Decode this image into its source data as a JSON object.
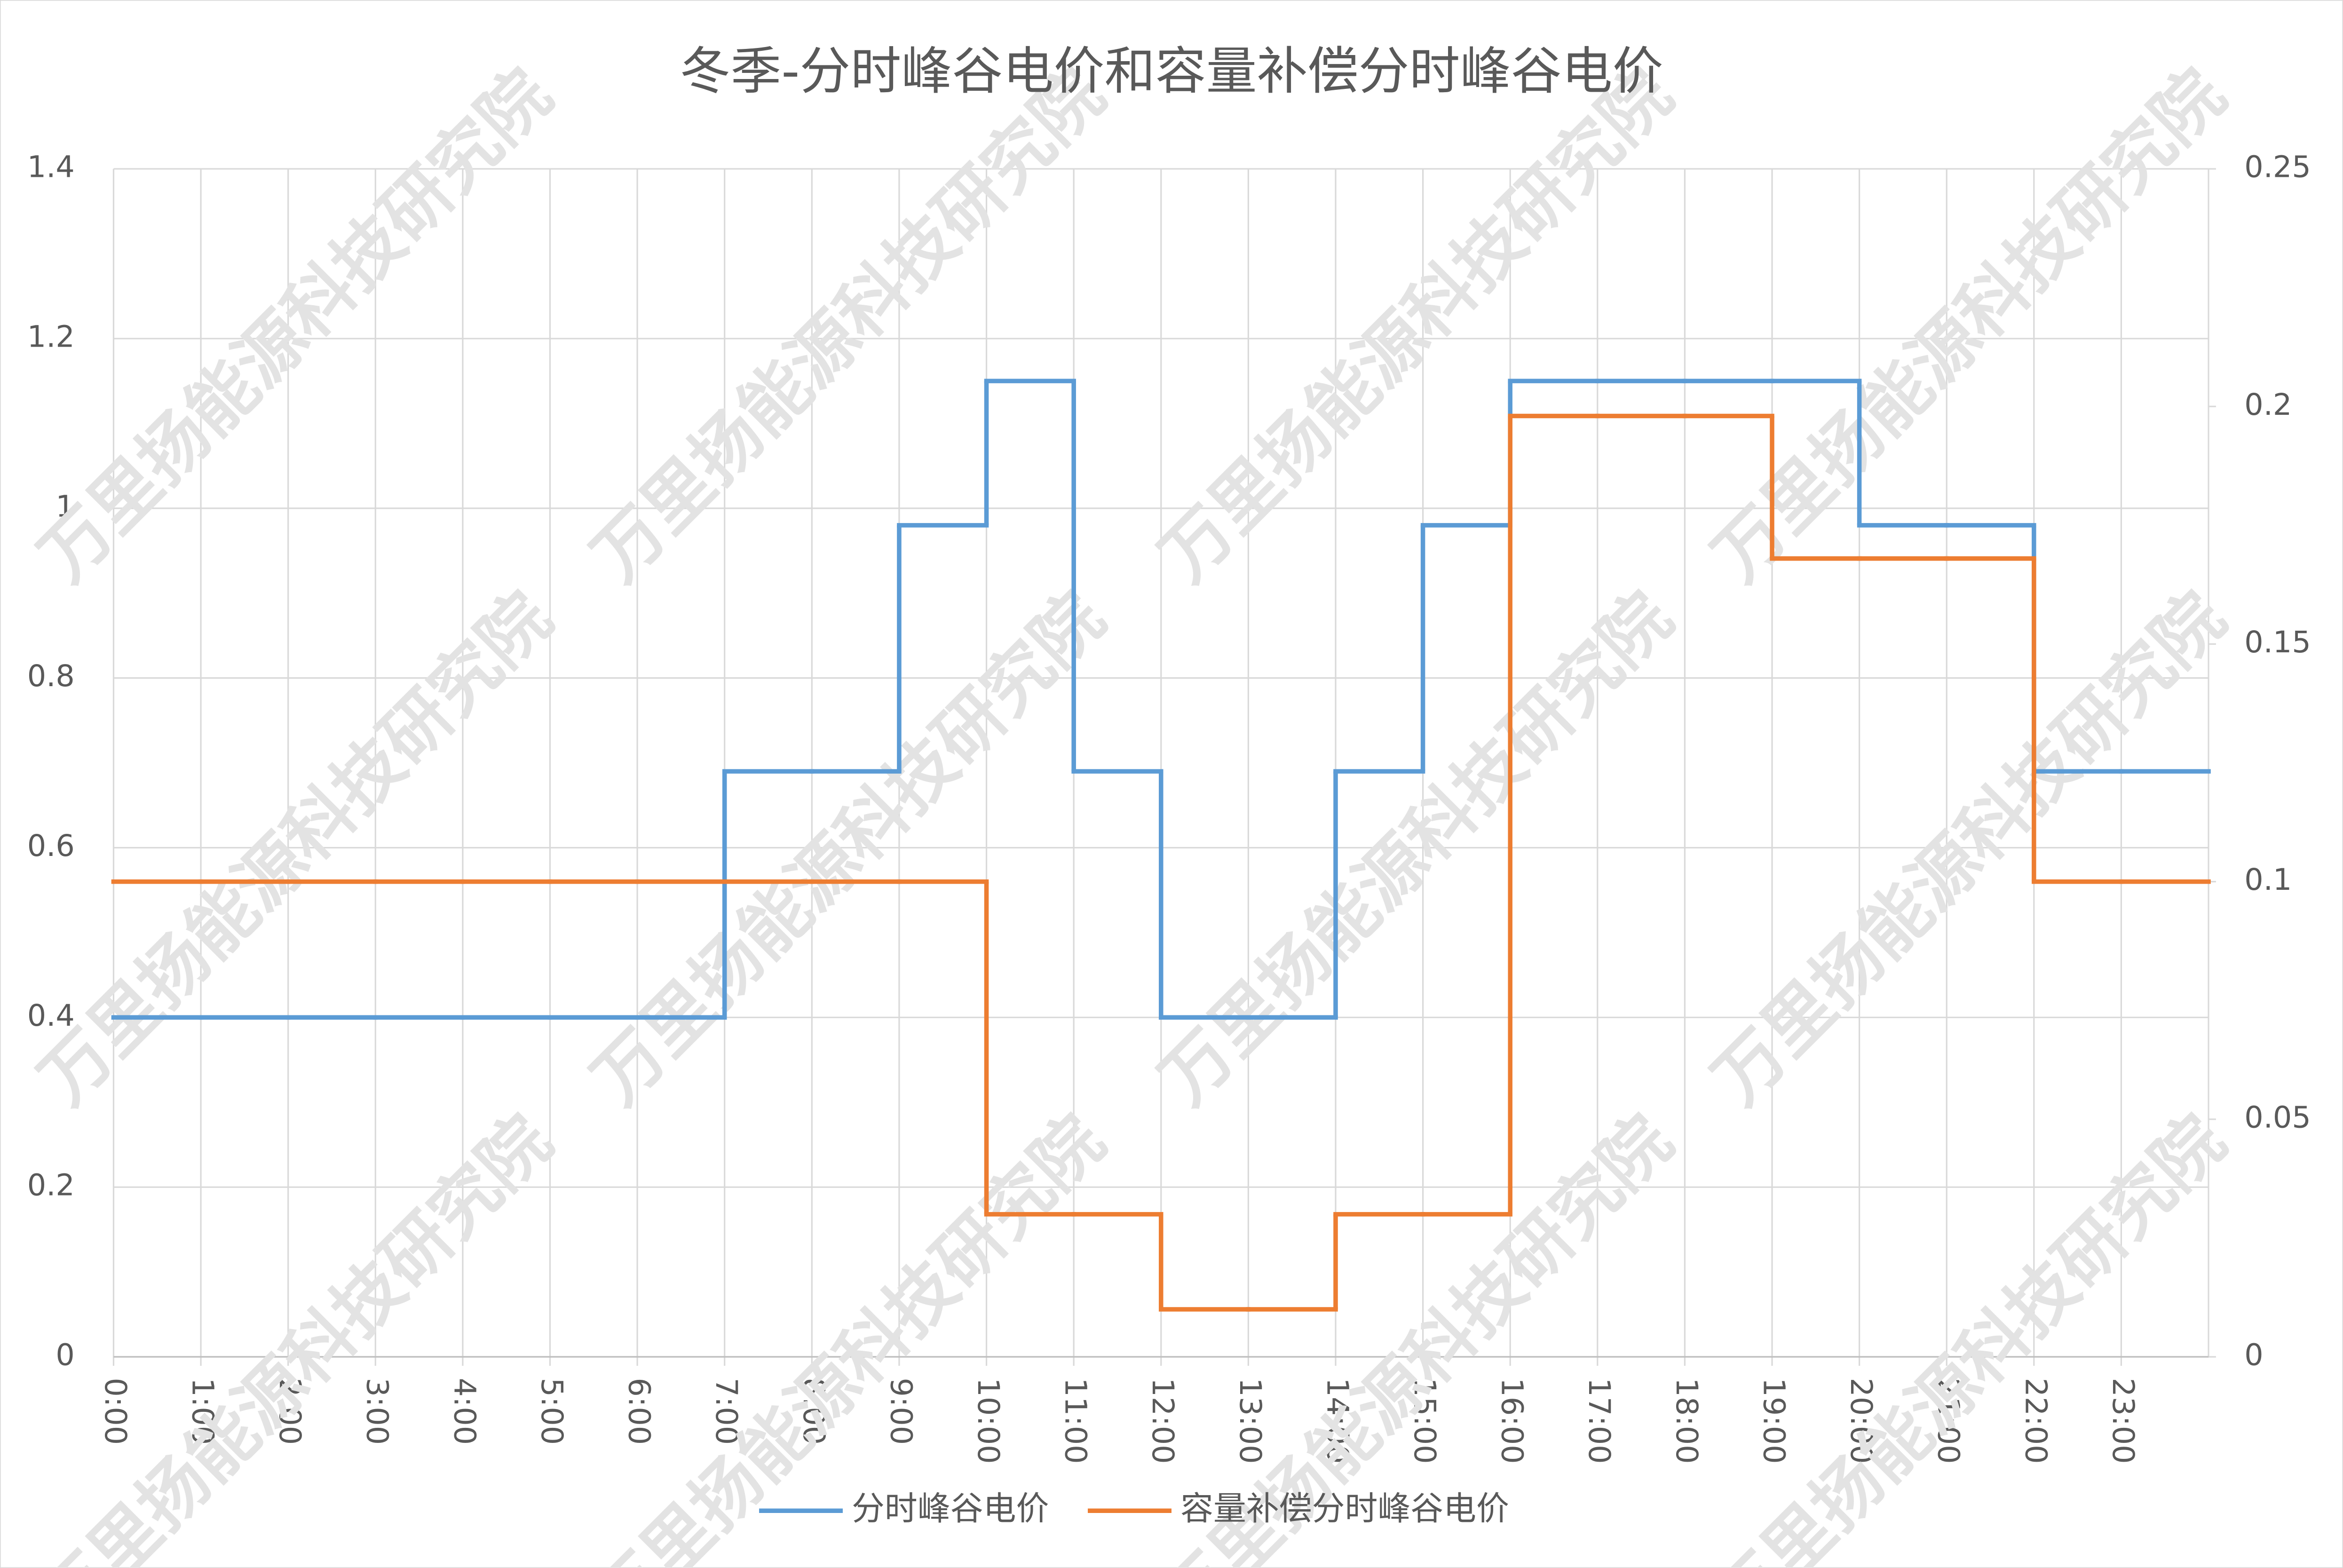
{
  "chart_data": {
    "type": "step",
    "title": "冬季-分时峰谷电价和容量补偿分时峰谷电价",
    "watermark": "万里扬能源科技研究院",
    "categories": [
      "0:00",
      "1:00",
      "2:00",
      "3:00",
      "4:00",
      "5:00",
      "6:00",
      "7:00",
      "8:00",
      "9:00",
      "10:00",
      "11:00",
      "12:00",
      "13:00",
      "14:00",
      "15:00",
      "16:00",
      "17:00",
      "18:00",
      "19:00",
      "20:00",
      "21:00",
      "22:00",
      "23:00"
    ],
    "series": [
      {
        "name": "分时峰谷电价",
        "color": "#5b9bd5",
        "axis": "y",
        "values": [
          0.4,
          0.4,
          0.4,
          0.4,
          0.4,
          0.4,
          0.4,
          0.69,
          0.69,
          0.98,
          1.15,
          0.69,
          0.4,
          0.4,
          0.69,
          0.98,
          1.15,
          1.15,
          1.15,
          1.15,
          0.98,
          0.98,
          0.69,
          0.69
        ]
      },
      {
        "name": "容量补偿分时峰谷电价",
        "color": "#ed7d31",
        "axis": "y2",
        "values": [
          0.1,
          0.1,
          0.1,
          0.1,
          0.1,
          0.1,
          0.1,
          0.1,
          0.1,
          0.1,
          0.03,
          0.03,
          0.01,
          0.01,
          0.03,
          0.03,
          0.198,
          0.198,
          0.198,
          0.168,
          0.168,
          0.168,
          0.1,
          0.1
        ]
      }
    ],
    "ylim": [
      0,
      1.4
    ],
    "yticks": [
      0,
      0.2,
      0.4,
      0.6,
      0.8,
      1,
      1.2,
      1.4
    ],
    "y2lim": [
      0,
      0.25
    ],
    "y2ticks": [
      0,
      0.05,
      0.1,
      0.15,
      0.2,
      0.25
    ],
    "grid": true,
    "legend": "bottom"
  }
}
